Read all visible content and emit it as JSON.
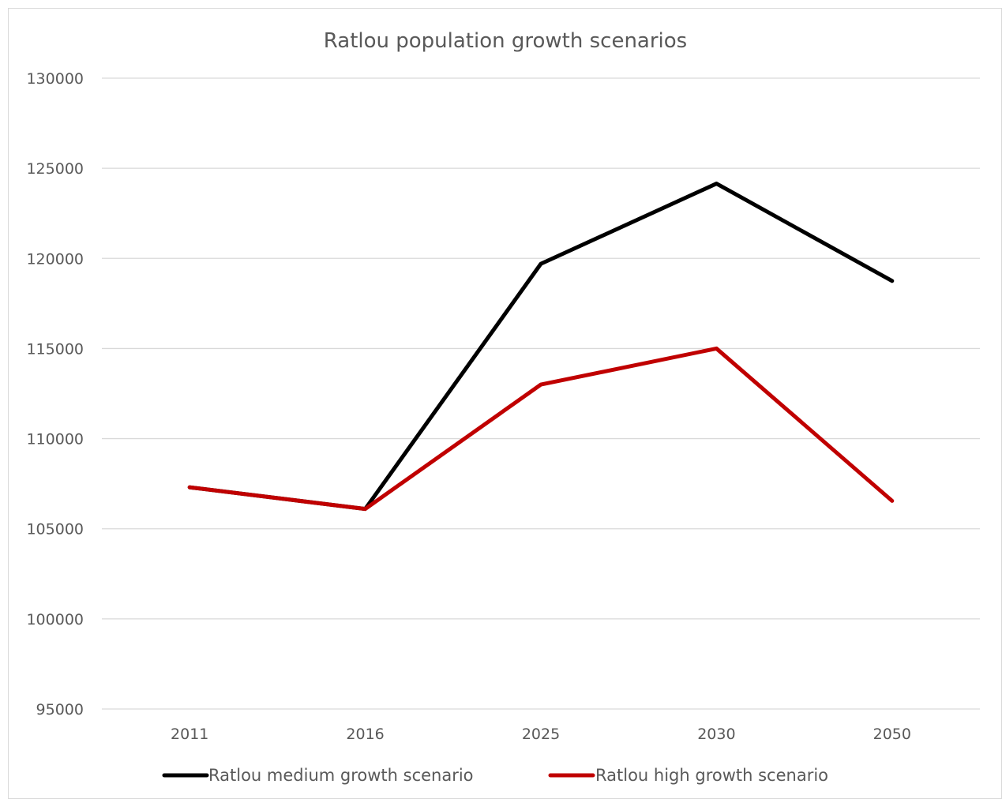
{
  "chart_data": {
    "type": "line",
    "title": "Ratlou population growth scenarios",
    "xlabel": "",
    "ylabel": "",
    "categories": [
      "2011",
      "2016",
      "2025",
      "2030",
      "2050"
    ],
    "ylim": [
      95000,
      130000
    ],
    "yticks": [
      130000,
      125000,
      120000,
      115000,
      110000,
      105000,
      100000,
      95000
    ],
    "grid": true,
    "legend_position": "bottom",
    "series": [
      {
        "name": "Ratlou medium growth scenario",
        "color": "#000000",
        "values": [
          107300,
          106100,
          119700,
          124150,
          118750
        ]
      },
      {
        "name": "Ratlou high growth scenario",
        "color": "#c00000",
        "values": [
          107300,
          106100,
          113000,
          115000,
          106550
        ]
      }
    ]
  }
}
